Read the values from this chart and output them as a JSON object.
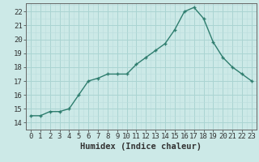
{
  "x": [
    0,
    1,
    2,
    3,
    4,
    5,
    6,
    7,
    8,
    9,
    10,
    11,
    12,
    13,
    14,
    15,
    16,
    17,
    18,
    19,
    20,
    21,
    22,
    23
  ],
  "y": [
    14.5,
    14.5,
    14.8,
    14.8,
    15.0,
    16.0,
    17.0,
    17.2,
    17.5,
    17.5,
    17.5,
    18.2,
    18.7,
    19.2,
    19.7,
    20.7,
    22.0,
    22.3,
    21.5,
    19.8,
    18.7,
    18.0,
    17.5,
    17.0
  ],
  "line_color": "#2e7d6e",
  "marker": "+",
  "marker_size": 3.5,
  "marker_linewidth": 1.0,
  "line_width": 1.0,
  "bg_color": "#cce9e7",
  "grid_major_color": "#aad4d2",
  "grid_minor_color": "#bbdedd",
  "spine_color": "#666666",
  "tick_color": "#333333",
  "xlabel": "Humidex (Indice chaleur)",
  "xlabel_fontsize": 7.5,
  "tick_fontsize": 6.5,
  "ylim": [
    13.8,
    22.6
  ],
  "yticks": [
    14,
    15,
    16,
    17,
    18,
    19,
    20,
    21,
    22
  ],
  "xlim": [
    -0.5,
    23.5
  ],
  "xticks": [
    0,
    1,
    2,
    3,
    4,
    5,
    6,
    7,
    8,
    9,
    10,
    11,
    12,
    13,
    14,
    15,
    16,
    17,
    18,
    19,
    20,
    21,
    22,
    23
  ]
}
